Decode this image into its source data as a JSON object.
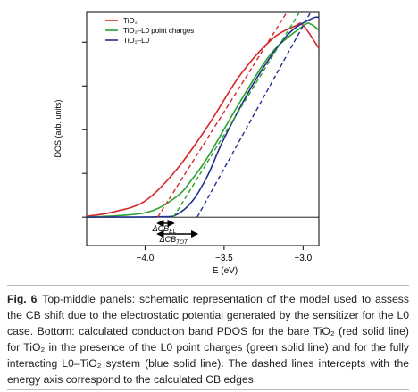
{
  "chart_data": {
    "type": "line",
    "xlabel": "E (eV)",
    "ylabel": "DOS (arb. units)",
    "xlim": [
      -4.37,
      -2.9
    ],
    "ylim": [
      -0.65,
      4.7
    ],
    "xticks": [
      {
        "value": -4.0,
        "label": "−4.0"
      },
      {
        "value": -3.5,
        "label": "−3.5"
      },
      {
        "value": -3.0,
        "label": "−3.0"
      }
    ],
    "yticks": [
      0,
      1,
      2,
      3,
      4
    ],
    "legend": "upper left",
    "series": [
      {
        "name": "TiO₂",
        "color": "#d62728",
        "x": [
          -4.37,
          -4.2,
          -4.0,
          -3.8,
          -3.6,
          -3.4,
          -3.2,
          -3.05,
          -3.0,
          -2.9
        ],
        "values": [
          0.02,
          0.12,
          0.37,
          1.09,
          2.1,
          3.24,
          4.06,
          4.37,
          4.39,
          3.86
        ]
      },
      {
        "name": "TiO₂–L0 point charges",
        "color": "#2ca02c",
        "x": [
          -4.37,
          -4.0,
          -3.8,
          -3.7,
          -3.6,
          -3.4,
          -3.2,
          -3.0,
          -2.95,
          -2.9
        ],
        "values": [
          0.0,
          0.1,
          0.47,
          0.88,
          1.39,
          2.63,
          3.75,
          4.37,
          4.41,
          4.27
        ]
      },
      {
        "name": "TiO₂–L0",
        "color": "#1f2f8f",
        "x": [
          -4.37,
          -3.9,
          -3.8,
          -3.7,
          -3.6,
          -3.5,
          -3.3,
          -3.1,
          -2.95,
          -2.9
        ],
        "values": [
          0.0,
          0.01,
          0.06,
          0.37,
          0.98,
          1.8,
          3.14,
          4.16,
          4.53,
          4.57
        ]
      }
    ],
    "edge_lines": [
      {
        "color": "#d62728",
        "x": [
          -3.92,
          -3.1
        ],
        "values": [
          0,
          4.7
        ]
      },
      {
        "color": "#2ca02c",
        "x": [
          -3.82,
          -3.02
        ],
        "values": [
          0,
          4.7
        ]
      },
      {
        "color": "#1f2f8f",
        "x": [
          -3.67,
          -2.95
        ],
        "values": [
          0,
          4.7
        ]
      }
    ],
    "annotations": [
      {
        "text": "ΔCB",
        "sub": "EL",
        "x": [
          -3.92,
          -3.82
        ]
      },
      {
        "text": "ΔCB",
        "sub": "TOT",
        "x": [
          -3.92,
          -3.67
        ]
      }
    ]
  },
  "caption": {
    "label": "Fig. 6",
    "text": "Top-middle panels: schematic representation of the model used to assess the CB shift due to the electrostatic potential generated by the sensitizer for the L0 case. Bottom: calculated conduction band PDOS for the bare TiO₂ (red solid line) for TiO₂ in the presence of the L0 point charges (green solid line) and for the fully interacting L0–TiO₂ system (blue solid line). The dashed lines intercepts with the energy axis correspond to the calculated CB edges."
  }
}
